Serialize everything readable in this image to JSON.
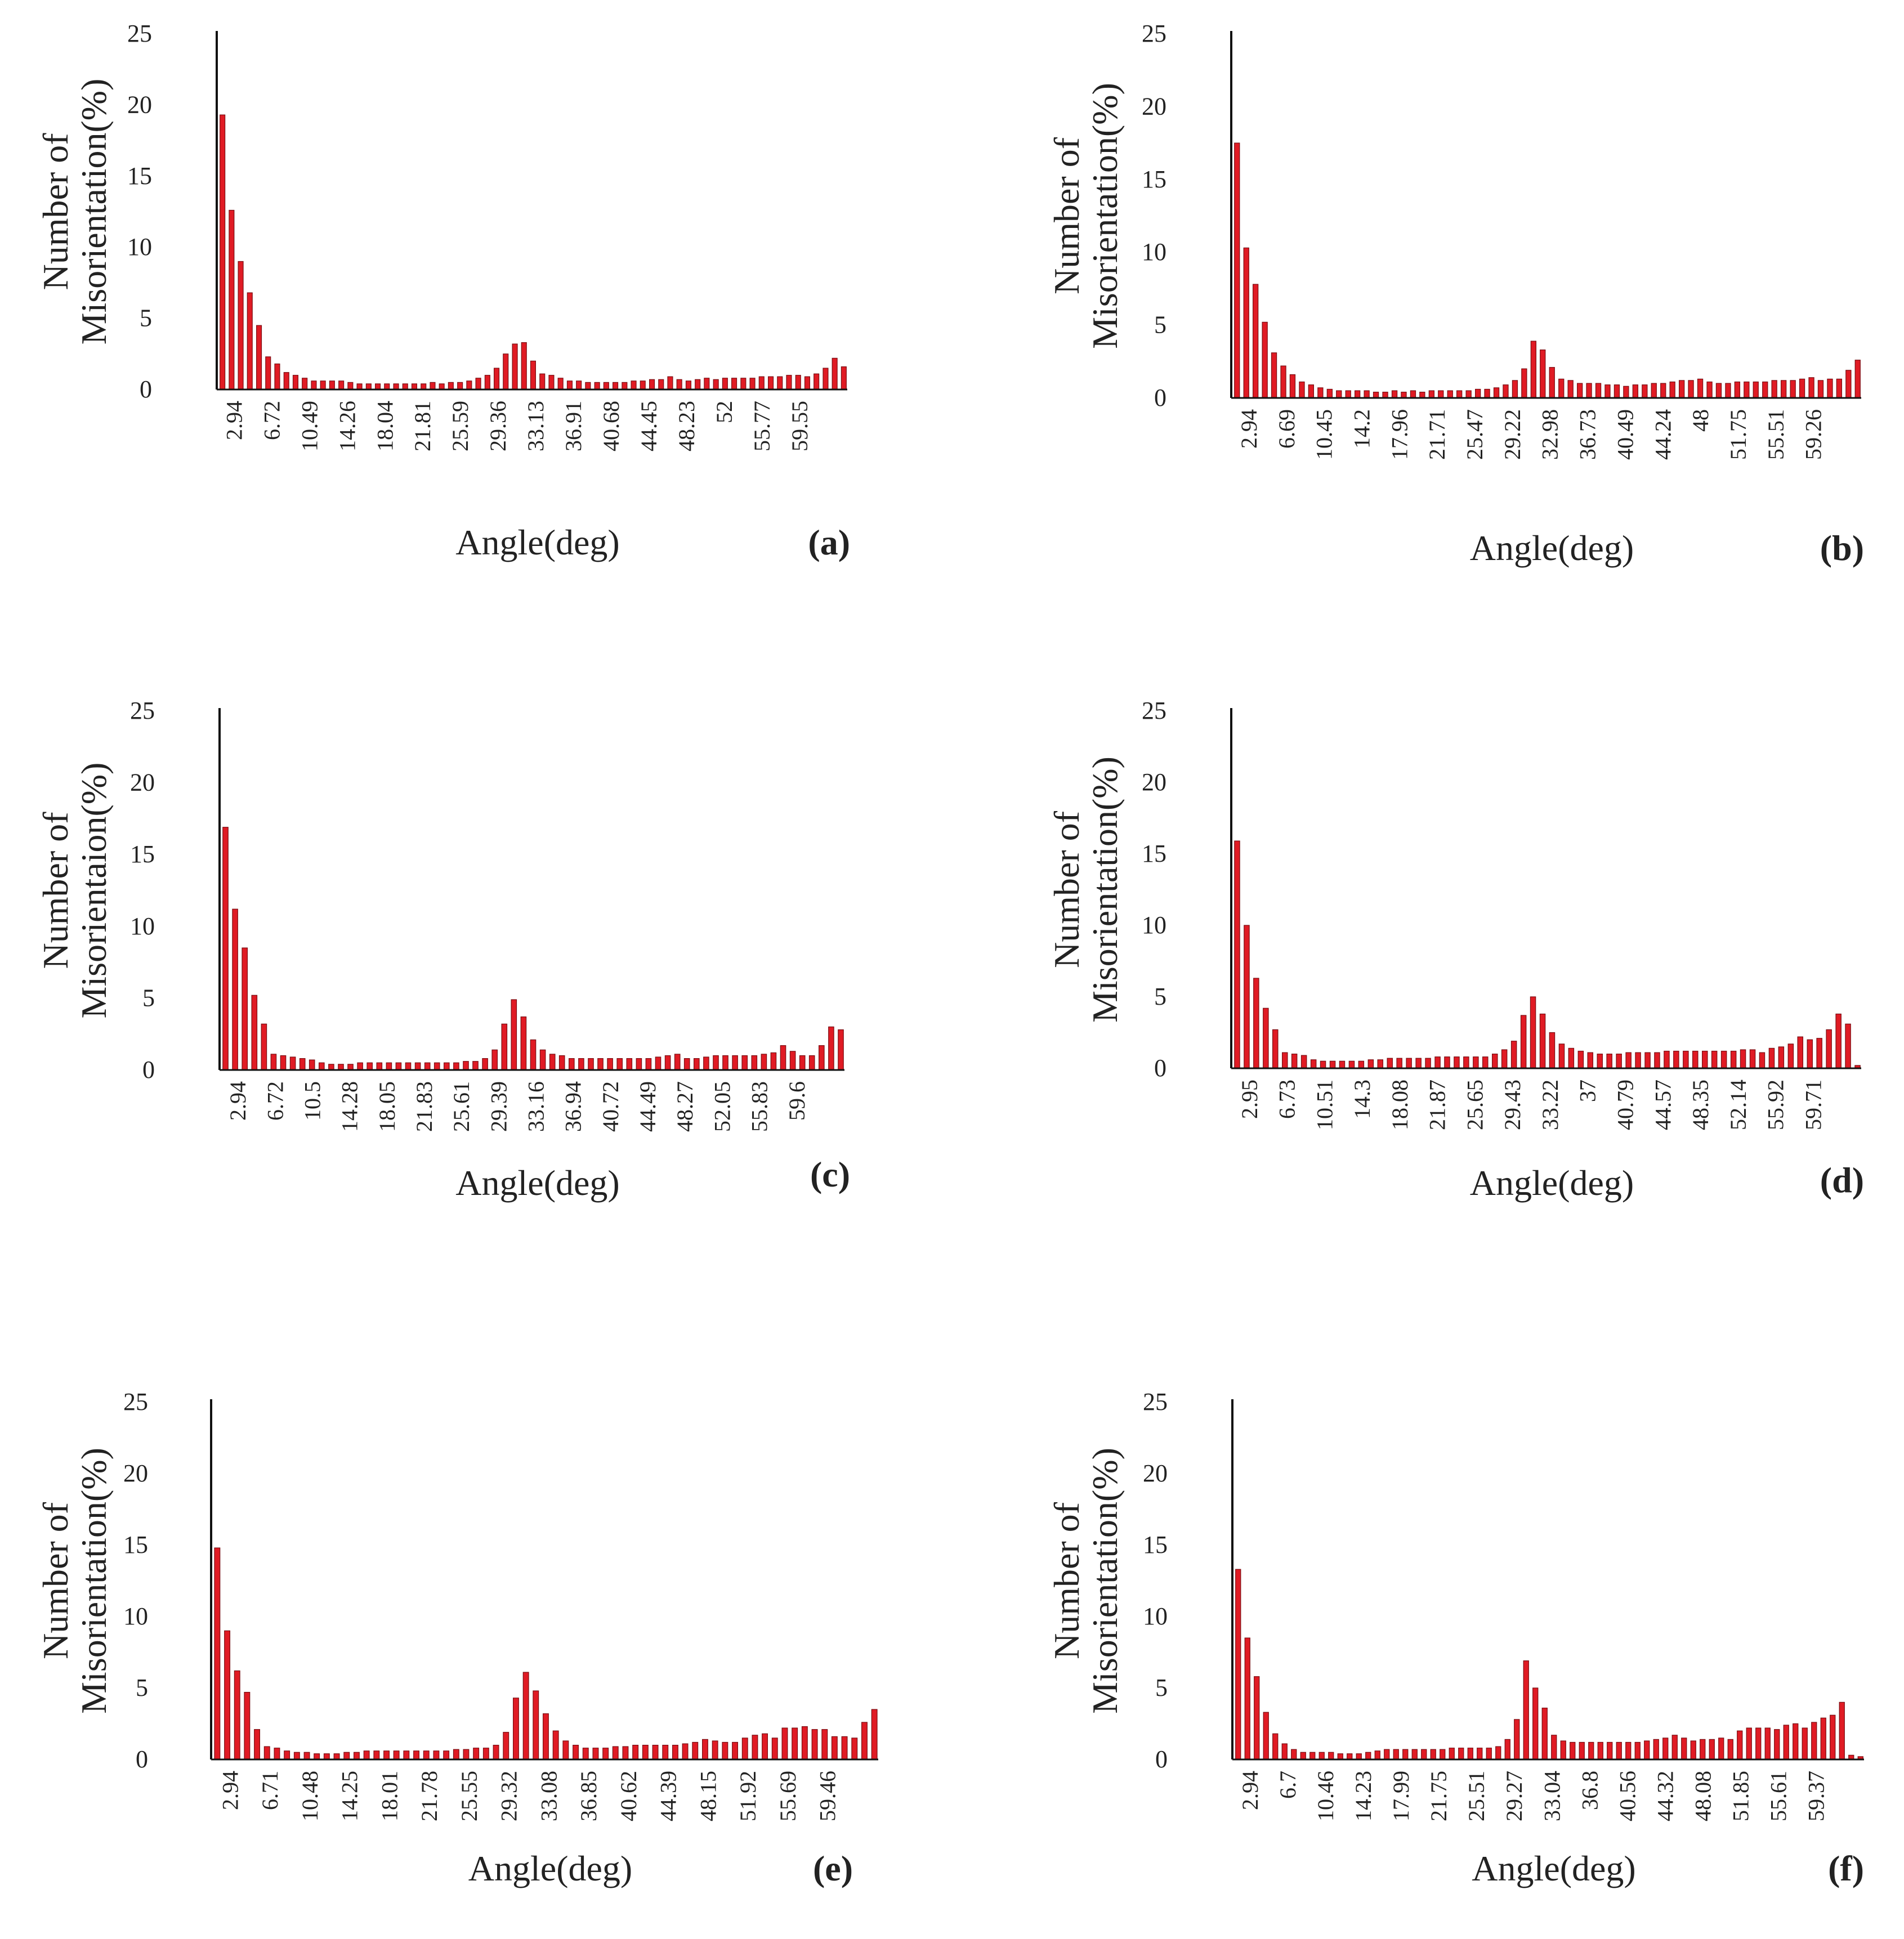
{
  "colors": {
    "bar": "#e01b24",
    "bar_stroke": "#7a0d12",
    "axis": "#111111",
    "text": "#222222"
  },
  "chart_data": [
    {
      "panel": "a",
      "panel_label": "(a)",
      "type": "bar",
      "title": "",
      "ylabel_lines": [
        "Number of",
        "Misorientation(%)"
      ],
      "xlabel": "Angle(deg)",
      "ylim": [
        0,
        25
      ],
      "yticks": [
        0,
        5,
        10,
        15,
        20,
        25
      ],
      "tick_labels": [
        "2.94",
        "6.72",
        "10.49",
        "14.26",
        "18.04",
        "21.81",
        "25.59",
        "29.36",
        "33.13",
        "36.91",
        "40.68",
        "44.45",
        "48.23",
        "52",
        "55.77",
        "59.55"
      ],
      "values": [
        19.3,
        12.6,
        9.0,
        6.8,
        4.5,
        2.3,
        1.8,
        1.2,
        1.0,
        0.8,
        0.6,
        0.6,
        0.6,
        0.6,
        0.5,
        0.4,
        0.4,
        0.4,
        0.4,
        0.4,
        0.4,
        0.4,
        0.4,
        0.5,
        0.4,
        0.5,
        0.5,
        0.6,
        0.8,
        1.0,
        1.5,
        2.5,
        3.2,
        3.3,
        2.0,
        1.1,
        1.0,
        0.8,
        0.6,
        0.6,
        0.5,
        0.5,
        0.5,
        0.5,
        0.5,
        0.6,
        0.6,
        0.7,
        0.7,
        0.9,
        0.7,
        0.6,
        0.7,
        0.8,
        0.7,
        0.8,
        0.8,
        0.8,
        0.8,
        0.9,
        0.9,
        0.9,
        1.0,
        1.0,
        0.9,
        1.1,
        1.5,
        2.2,
        1.6
      ]
    },
    {
      "panel": "b",
      "panel_label": "(b)",
      "type": "bar",
      "title": "",
      "ylabel_lines": [
        "Number of",
        "Misorientation(%)"
      ],
      "xlabel": "Angle(deg)",
      "ylim": [
        0,
        25
      ],
      "yticks": [
        0,
        5,
        10,
        15,
        20,
        25
      ],
      "tick_labels": [
        "2.94",
        "6.69",
        "10.45",
        "14.2",
        "17.96",
        "21.71",
        "25.47",
        "29.22",
        "32.98",
        "36.73",
        "40.49",
        "44.24",
        "48",
        "51.75",
        "55.51",
        "59.26"
      ],
      "values": [
        17.5,
        10.3,
        7.8,
        5.2,
        3.1,
        2.2,
        1.6,
        1.1,
        0.9,
        0.7,
        0.6,
        0.5,
        0.5,
        0.5,
        0.5,
        0.4,
        0.4,
        0.5,
        0.4,
        0.5,
        0.4,
        0.5,
        0.5,
        0.5,
        0.5,
        0.5,
        0.6,
        0.6,
        0.7,
        0.9,
        1.2,
        2.0,
        3.9,
        3.3,
        2.1,
        1.3,
        1.2,
        1.0,
        1.0,
        1.0,
        0.9,
        0.9,
        0.8,
        0.9,
        0.9,
        1.0,
        1.0,
        1.1,
        1.2,
        1.2,
        1.3,
        1.1,
        1.0,
        1.0,
        1.1,
        1.1,
        1.1,
        1.1,
        1.2,
        1.2,
        1.2,
        1.3,
        1.4,
        1.2,
        1.3,
        1.3,
        1.9,
        2.6
      ]
    },
    {
      "panel": "c",
      "panel_label": "(c)",
      "type": "bar",
      "title": "",
      "ylabel_lines": [
        "Number of",
        "Misorientaion(%)"
      ],
      "xlabel": "Angle(deg)",
      "ylim": [
        0,
        25
      ],
      "yticks": [
        0,
        5,
        10,
        15,
        20,
        25
      ],
      "tick_labels": [
        "2.94",
        "6.72",
        "10.5",
        "14.28",
        "18.05",
        "21.83",
        "25.61",
        "29.39",
        "33.16",
        "36.94",
        "40.72",
        "44.49",
        "48.27",
        "52.05",
        "55.83",
        "59.6"
      ],
      "values": [
        16.9,
        11.2,
        8.5,
        5.2,
        3.2,
        1.1,
        1.0,
        0.9,
        0.8,
        0.7,
        0.5,
        0.4,
        0.4,
        0.4,
        0.5,
        0.5,
        0.5,
        0.5,
        0.5,
        0.5,
        0.5,
        0.5,
        0.5,
        0.5,
        0.5,
        0.6,
        0.6,
        0.8,
        1.4,
        3.2,
        4.9,
        3.7,
        2.1,
        1.4,
        1.1,
        1.0,
        0.8,
        0.8,
        0.8,
        0.8,
        0.8,
        0.8,
        0.8,
        0.8,
        0.8,
        0.9,
        1.0,
        1.1,
        0.8,
        0.8,
        0.9,
        1.0,
        1.0,
        1.0,
        1.0,
        1.0,
        1.1,
        1.2,
        1.7,
        1.3,
        1.0,
        1.0,
        1.7,
        3.0,
        2.8
      ]
    },
    {
      "panel": "d",
      "panel_label": "(d)",
      "type": "bar",
      "title": "",
      "ylabel_lines": [
        "Number of",
        "Misorientation(%)"
      ],
      "xlabel": "Angle(deg)",
      "ylim": [
        0,
        25
      ],
      "yticks": [
        0,
        5,
        10,
        15,
        20,
        25
      ],
      "tick_labels": [
        "2.95",
        "6.73",
        "10.51",
        "14.3",
        "18.08",
        "21.87",
        "25.65",
        "29.43",
        "33.22",
        "37",
        "40.79",
        "44.57",
        "48.35",
        "52.14",
        "55.92",
        "59.71"
      ],
      "values": [
        15.9,
        10.0,
        6.3,
        4.2,
        2.7,
        1.1,
        1.0,
        0.9,
        0.6,
        0.5,
        0.5,
        0.5,
        0.5,
        0.5,
        0.6,
        0.6,
        0.7,
        0.7,
        0.7,
        0.7,
        0.7,
        0.8,
        0.8,
        0.8,
        0.8,
        0.8,
        0.8,
        1.0,
        1.3,
        1.9,
        3.7,
        5.0,
        3.8,
        2.5,
        1.7,
        1.4,
        1.2,
        1.1,
        1.0,
        1.0,
        1.0,
        1.1,
        1.1,
        1.1,
        1.1,
        1.2,
        1.2,
        1.2,
        1.2,
        1.2,
        1.2,
        1.2,
        1.2,
        1.3,
        1.3,
        1.1,
        1.4,
        1.5,
        1.7,
        2.2,
        2.0,
        2.1,
        2.7,
        3.8,
        3.1,
        0.2
      ]
    },
    {
      "panel": "e",
      "panel_label": "(e)",
      "type": "bar",
      "title": "",
      "ylabel_lines": [
        "Number of",
        "Misorientation(%)"
      ],
      "xlabel": "Angle(deg)",
      "ylim": [
        0,
        25
      ],
      "yticks": [
        0,
        5,
        10,
        15,
        20,
        25
      ],
      "tick_labels": [
        "2.94",
        "6.71",
        "10.48",
        "14.25",
        "18.01",
        "21.78",
        "25.55",
        "29.32",
        "33.08",
        "36.85",
        "40.62",
        "44.39",
        "48.15",
        "51.92",
        "55.69",
        "59.46"
      ],
      "values": [
        14.8,
        9.0,
        6.2,
        4.7,
        2.1,
        0.9,
        0.8,
        0.6,
        0.5,
        0.5,
        0.4,
        0.4,
        0.4,
        0.5,
        0.5,
        0.6,
        0.6,
        0.6,
        0.6,
        0.6,
        0.6,
        0.6,
        0.6,
        0.6,
        0.7,
        0.7,
        0.8,
        0.8,
        1.0,
        1.9,
        4.3,
        6.1,
        4.8,
        3.2,
        2.0,
        1.3,
        1.0,
        0.8,
        0.8,
        0.8,
        0.9,
        0.9,
        1.0,
        1.0,
        1.0,
        1.0,
        1.0,
        1.1,
        1.2,
        1.4,
        1.3,
        1.2,
        1.2,
        1.5,
        1.7,
        1.8,
        1.5,
        2.2,
        2.2,
        2.3,
        2.1,
        2.1,
        1.6,
        1.6,
        1.5,
        2.6,
        3.5
      ]
    },
    {
      "panel": "f",
      "panel_label": "(f)",
      "type": "bar",
      "title": "",
      "ylabel_lines": [
        "Number of",
        "Misorientation(%)"
      ],
      "xlabel": "Angle(deg)",
      "ylim": [
        0,
        25
      ],
      "yticks": [
        0,
        5,
        10,
        15,
        20,
        25
      ],
      "tick_labels": [
        "2.94",
        "6.7",
        "10.46",
        "14.23",
        "17.99",
        "21.75",
        "25.51",
        "29.27",
        "33.04",
        "36.8",
        "40.56",
        "44.32",
        "48.08",
        "51.85",
        "55.61",
        "59.37"
      ],
      "values": [
        13.3,
        8.5,
        5.8,
        3.3,
        1.8,
        1.1,
        0.7,
        0.5,
        0.5,
        0.5,
        0.5,
        0.4,
        0.4,
        0.4,
        0.5,
        0.6,
        0.7,
        0.7,
        0.7,
        0.7,
        0.7,
        0.7,
        0.7,
        0.8,
        0.8,
        0.8,
        0.8,
        0.8,
        0.9,
        1.4,
        2.8,
        6.9,
        5.0,
        3.6,
        1.7,
        1.3,
        1.2,
        1.2,
        1.2,
        1.2,
        1.2,
        1.2,
        1.2,
        1.2,
        1.3,
        1.4,
        1.5,
        1.7,
        1.5,
        1.3,
        1.4,
        1.4,
        1.5,
        1.4,
        2.0,
        2.2,
        2.2,
        2.2,
        2.1,
        2.4,
        2.5,
        2.2,
        2.6,
        2.9,
        3.1,
        4.0,
        0.3,
        0.2
      ]
    }
  ]
}
